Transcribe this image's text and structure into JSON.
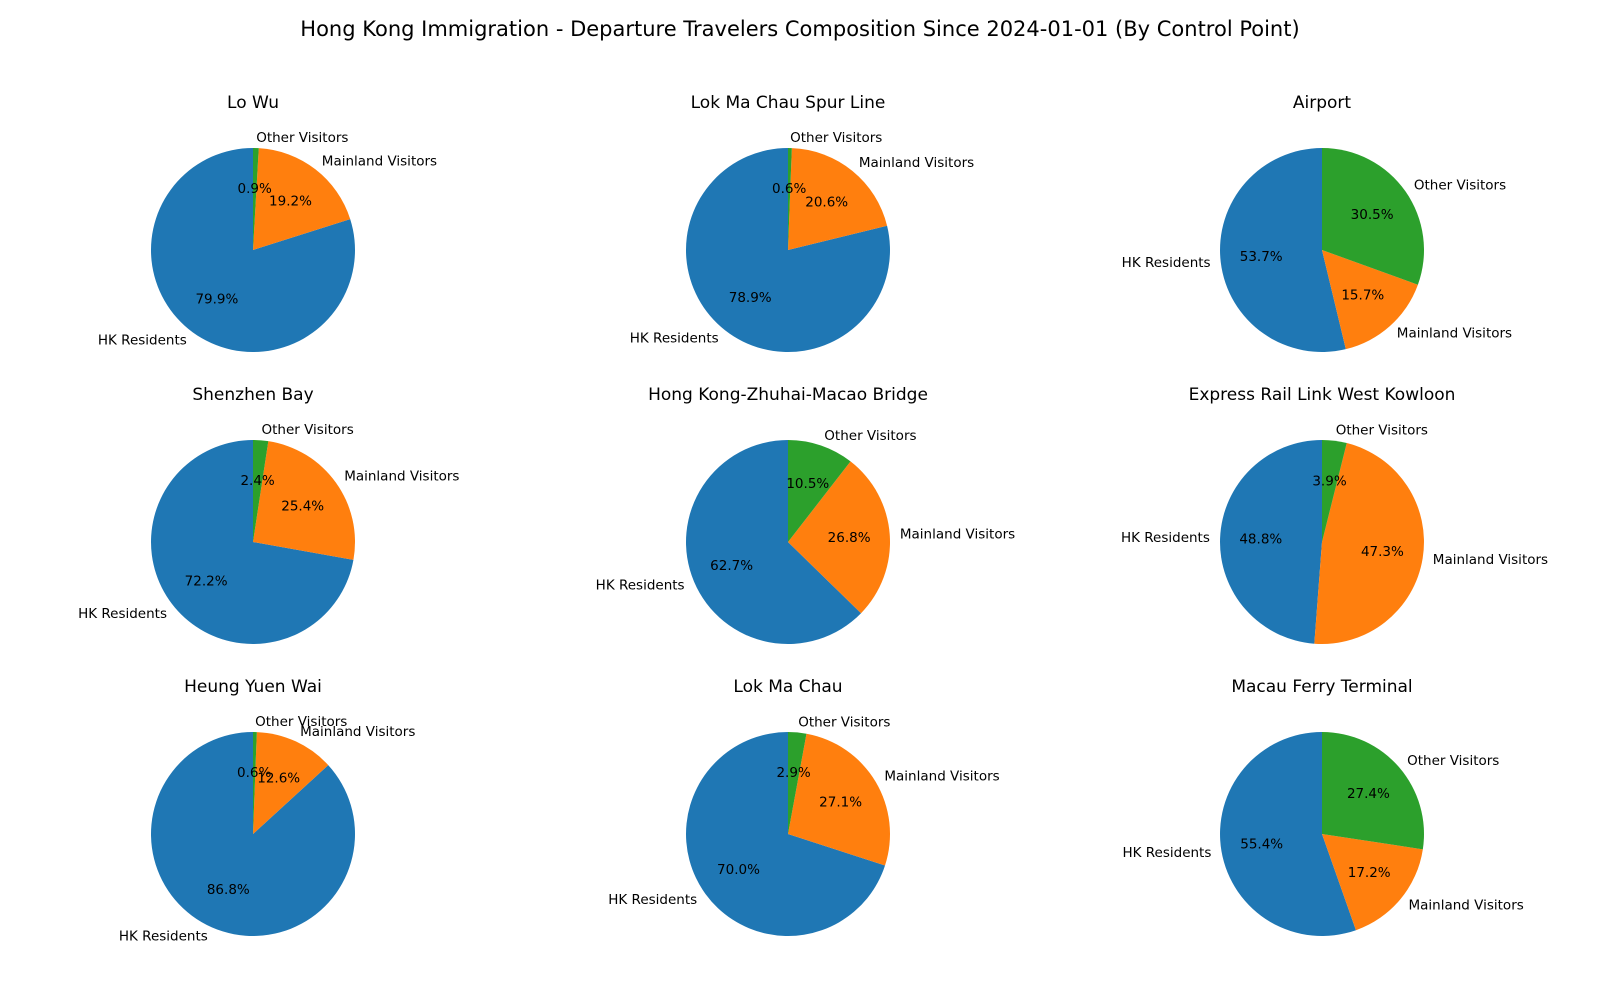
{
  "title": "Hong Kong Immigration - Departure Travelers Composition Since 2024-01-01 (By Control Point)",
  "colors": {
    "HK Residents": "#1f77b4",
    "Mainland Visitors": "#ff7f0e",
    "Other Visitors": "#2ca02c"
  },
  "chart_data": [
    {
      "type": "pie",
      "title": "Lo Wu",
      "slices": [
        {
          "label": "HK Residents",
          "value": 79.9,
          "display": "79.9%"
        },
        {
          "label": "Mainland Visitors",
          "value": 19.2,
          "display": "19.2%"
        },
        {
          "label": "Other Visitors",
          "value": 0.9,
          "display": "0.9%"
        }
      ]
    },
    {
      "type": "pie",
      "title": "Lok Ma Chau Spur Line",
      "slices": [
        {
          "label": "HK Residents",
          "value": 78.9,
          "display": "78.9%"
        },
        {
          "label": "Mainland Visitors",
          "value": 20.6,
          "display": "20.6%"
        },
        {
          "label": "Other Visitors",
          "value": 0.6,
          "display": "0.6%"
        }
      ]
    },
    {
      "type": "pie",
      "title": "Airport",
      "slices": [
        {
          "label": "HK Residents",
          "value": 53.7,
          "display": "53.7%"
        },
        {
          "label": "Mainland Visitors",
          "value": 15.7,
          "display": "15.7%"
        },
        {
          "label": "Other Visitors",
          "value": 30.5,
          "display": "30.5%"
        }
      ]
    },
    {
      "type": "pie",
      "title": "Shenzhen Bay",
      "slices": [
        {
          "label": "HK Residents",
          "value": 72.2,
          "display": "72.2%"
        },
        {
          "label": "Mainland Visitors",
          "value": 25.4,
          "display": "25.4%"
        },
        {
          "label": "Other Visitors",
          "value": 2.4,
          "display": "2.4%"
        }
      ]
    },
    {
      "type": "pie",
      "title": "Hong Kong-Zhuhai-Macao Bridge",
      "slices": [
        {
          "label": "HK Residents",
          "value": 62.7,
          "display": "62.7%"
        },
        {
          "label": "Mainland Visitors",
          "value": 26.8,
          "display": "26.8%"
        },
        {
          "label": "Other Visitors",
          "value": 10.5,
          "display": "10.5%"
        }
      ]
    },
    {
      "type": "pie",
      "title": "Express Rail Link West Kowloon",
      "slices": [
        {
          "label": "HK Residents",
          "value": 48.8,
          "display": "48.8%"
        },
        {
          "label": "Mainland Visitors",
          "value": 47.3,
          "display": "47.3%"
        },
        {
          "label": "Other Visitors",
          "value": 3.9,
          "display": "3.9%"
        }
      ]
    },
    {
      "type": "pie",
      "title": "Heung Yuen Wai",
      "slices": [
        {
          "label": "HK Residents",
          "value": 86.8,
          "display": "86.8%"
        },
        {
          "label": "Mainland Visitors",
          "value": 12.6,
          "display": "12.6%"
        },
        {
          "label": "Other Visitors",
          "value": 0.6,
          "display": "0.6%"
        }
      ]
    },
    {
      "type": "pie",
      "title": "Lok Ma Chau",
      "slices": [
        {
          "label": "HK Residents",
          "value": 70.0,
          "display": "70.0%"
        },
        {
          "label": "Mainland Visitors",
          "value": 27.1,
          "display": "27.1%"
        },
        {
          "label": "Other Visitors",
          "value": 2.9,
          "display": "2.9%"
        }
      ]
    },
    {
      "type": "pie",
      "title": "Macau Ferry Terminal",
      "slices": [
        {
          "label": "HK Residents",
          "value": 55.4,
          "display": "55.4%"
        },
        {
          "label": "Mainland Visitors",
          "value": 17.2,
          "display": "17.2%"
        },
        {
          "label": "Other Visitors",
          "value": 27.4,
          "display": "27.4%"
        }
      ]
    }
  ]
}
